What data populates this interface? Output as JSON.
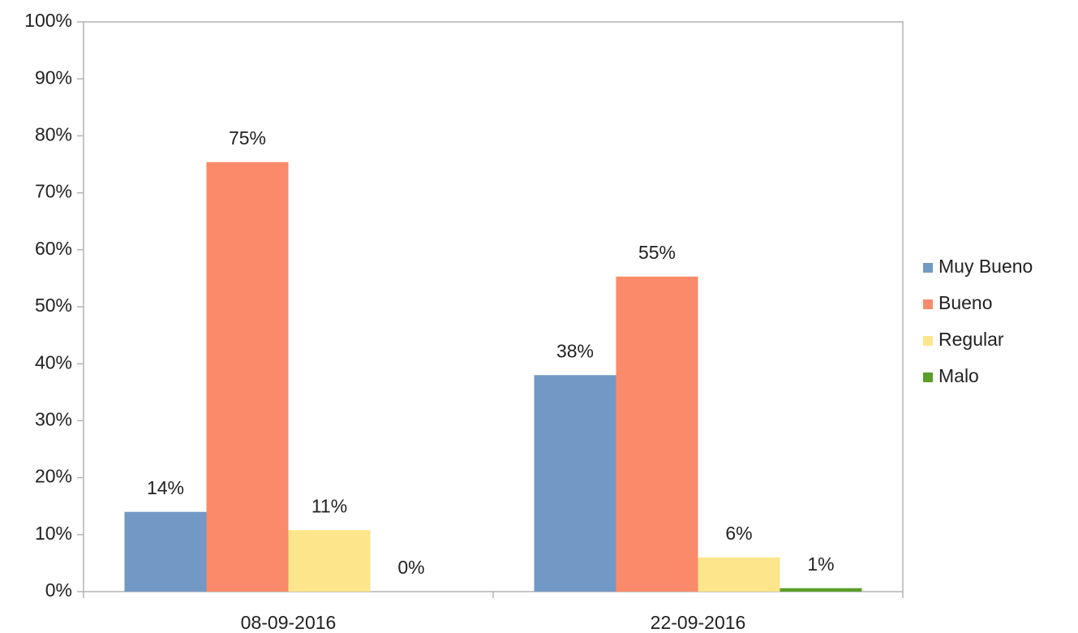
{
  "chart_data": {
    "type": "bar",
    "categories": [
      "08-09-2016",
      "22-09-2016"
    ],
    "series": [
      {
        "name": "Muy Bueno",
        "color": "#7299c6",
        "values": [
          14.0,
          38.0
        ],
        "value_labels": [
          "14%",
          "38%"
        ]
      },
      {
        "name": "Bueno",
        "color": "#fa8a6a",
        "values": [
          75.4,
          55.3
        ],
        "value_labels": [
          "75%",
          "55%"
        ]
      },
      {
        "name": "Regular",
        "color": "#fde58c",
        "values": [
          10.8,
          6.0
        ],
        "value_labels": [
          "11%",
          "6%"
        ]
      },
      {
        "name": "Malo",
        "color": "#5a9e28",
        "values": [
          0,
          0.6
        ],
        "value_labels": [
          "0%",
          "1%"
        ]
      }
    ],
    "ylim": [
      0,
      100
    ],
    "yticks": [
      {
        "value": 0,
        "label": "0%"
      },
      {
        "value": 10,
        "label": "10%"
      },
      {
        "value": 20,
        "label": "20%"
      },
      {
        "value": 30,
        "label": "30%"
      },
      {
        "value": 40,
        "label": "40%"
      },
      {
        "value": 50,
        "label": "50%"
      },
      {
        "value": 60,
        "label": "60%"
      },
      {
        "value": 70,
        "label": "70%"
      },
      {
        "value": 80,
        "label": "80%"
      },
      {
        "value": 90,
        "label": "90%"
      },
      {
        "value": 100,
        "label": "100%"
      }
    ],
    "grid": false,
    "legend": "right"
  }
}
